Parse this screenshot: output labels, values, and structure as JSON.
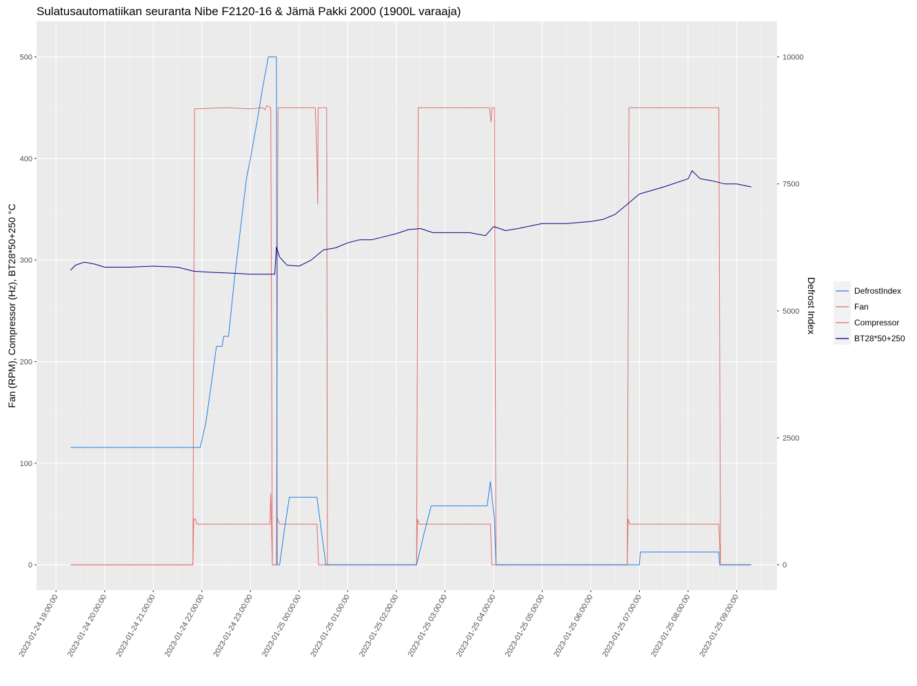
{
  "chart_data": {
    "type": "line",
    "title": "Sulatusautomatiikan seuranta Nibe F2120-16 & Jämä Pakki 2000 (1900L varaaja)",
    "ylabel": "Fan (RPM), Compressor (Hz), BT28*50+250 °C",
    "y2label": "Defrost Index",
    "ylim": [
      -25,
      535
    ],
    "y2lim": [
      -500,
      10700
    ],
    "yticks": [
      0,
      100,
      200,
      300,
      400,
      500
    ],
    "y2ticks": [
      0,
      2500,
      5000,
      7500,
      10000
    ],
    "y2tick_labels": [
      "0",
      "2500",
      "5000",
      "7500",
      "10000"
    ],
    "xlim": [
      18.6,
      9.83
    ],
    "xticks": [
      "2023-01-24 19:00:00",
      "2023-01-24 20:00:00",
      "2023-01-24 21:00:00",
      "2023-01-24 22:00:00",
      "2023-01-24 23:00:00",
      "2023-01-25 00:00:00",
      "2023-01-25 01:00:00",
      "2023-01-25 02:00:00",
      "2023-01-25 03:00:00",
      "2023-01-25 04:00:00",
      "2023-01-25 05:00:00",
      "2023-01-25 06:00:00",
      "2023-01-25 07:00:00",
      "2023-01-25 08:00:00",
      "2023-01-25 09:00:00"
    ],
    "grid": true,
    "legend_position": "right",
    "series": [
      {
        "name": "DefrostIndex",
        "color": "#1f7fe6",
        "axis": "right",
        "points": [
          [
            "2023-01-24 19:18:00",
            2310
          ],
          [
            "2023-01-24 21:58:00",
            2310
          ],
          [
            "2023-01-24 22:05:00",
            2800
          ],
          [
            "2023-01-24 22:12:00",
            3600
          ],
          [
            "2023-01-24 22:18:00",
            4300
          ],
          [
            "2023-01-24 22:25:00",
            4300
          ],
          [
            "2023-01-24 22:27:00",
            4500
          ],
          [
            "2023-01-24 22:33:00",
            4500
          ],
          [
            "2023-01-24 22:40:00",
            5600
          ],
          [
            "2023-01-24 22:55:00",
            7600
          ],
          [
            "2023-01-24 23:00:00",
            8000
          ],
          [
            "2023-01-24 23:10:00",
            8900
          ],
          [
            "2023-01-24 23:14:00",
            9300
          ],
          [
            "2023-01-24 23:22:00",
            10000
          ],
          [
            "2023-01-24 23:32:00",
            10000
          ],
          [
            "2023-01-24 23:33:00",
            0
          ],
          [
            "2023-01-24 23:36:00",
            0
          ],
          [
            "2023-01-24 23:42:00",
            700
          ],
          [
            "2023-01-24 23:48:00",
            1330
          ],
          [
            "2023-01-25 00:22:00",
            1330
          ],
          [
            "2023-01-25 00:33:00",
            0
          ],
          [
            "2023-01-25 02:25:00",
            0
          ],
          [
            "2023-01-25 02:34:00",
            600
          ],
          [
            "2023-01-25 02:43:00",
            1160
          ],
          [
            "2023-01-25 03:52:00",
            1160
          ],
          [
            "2023-01-25 03:56:00",
            1640
          ],
          [
            "2023-01-25 04:01:00",
            900
          ],
          [
            "2023-01-25 04:03:00",
            0
          ],
          [
            "2023-01-25 06:45:00",
            0
          ],
          [
            "2023-01-25 07:00:00",
            0
          ],
          [
            "2023-01-25 07:01:00",
            250
          ],
          [
            "2023-01-25 08:38:00",
            250
          ],
          [
            "2023-01-25 08:39:00",
            0
          ],
          [
            "2023-01-25 09:18:00",
            0
          ]
        ]
      },
      {
        "name": "Fan",
        "color": "#e06c6c",
        "axis": "left",
        "points": [
          [
            "2023-01-24 19:18:00",
            0
          ],
          [
            "2023-01-24 21:49:00",
            0
          ],
          [
            "2023-01-24 21:51:00",
            449
          ],
          [
            "2023-01-24 22:30:00",
            450
          ],
          [
            "2023-01-24 23:00:00",
            449
          ],
          [
            "2023-01-24 23:15:00",
            450
          ],
          [
            "2023-01-24 23:18:00",
            448
          ],
          [
            "2023-01-24 23:20:00",
            452
          ],
          [
            "2023-01-24 23:25:00",
            450
          ],
          [
            "2023-01-24 23:27:00",
            0
          ],
          [
            "2023-01-24 23:32:00",
            0
          ],
          [
            "2023-01-24 23:34:00",
            450
          ],
          [
            "2023-01-25 00:20:00",
            450
          ],
          [
            "2023-01-25 00:22:00",
            400
          ],
          [
            "2023-01-25 00:23:00",
            355
          ],
          [
            "2023-01-25 00:23:30",
            450
          ],
          [
            "2023-01-25 00:34:00",
            450
          ],
          [
            "2023-01-25 00:35:00",
            0
          ],
          [
            "2023-01-25 02:25:00",
            0
          ],
          [
            "2023-01-25 02:27:00",
            450
          ],
          [
            "2023-01-25 03:55:00",
            450
          ],
          [
            "2023-01-25 03:57:00",
            436
          ],
          [
            "2023-01-25 03:58:00",
            450
          ],
          [
            "2023-01-25 04:01:00",
            450
          ],
          [
            "2023-01-25 04:03:00",
            0
          ],
          [
            "2023-01-25 06:45:00",
            0
          ],
          [
            "2023-01-25 06:47:00",
            450
          ],
          [
            "2023-01-25 08:38:00",
            450
          ],
          [
            "2023-01-25 08:40:00",
            0
          ],
          [
            "2023-01-25 09:18:00",
            0
          ]
        ]
      },
      {
        "name": "Compressor",
        "color": "#e06c6c",
        "axis": "left",
        "points": [
          [
            "2023-01-24 19:18:00",
            0
          ],
          [
            "2023-01-24 21:49:00",
            0
          ],
          [
            "2023-01-24 21:50:00",
            45
          ],
          [
            "2023-01-24 21:52:00",
            45
          ],
          [
            "2023-01-24 21:54:00",
            40
          ],
          [
            "2023-01-24 23:24:00",
            40
          ],
          [
            "2023-01-24 23:25:00",
            70
          ],
          [
            "2023-01-24 23:27:00",
            0
          ],
          [
            "2023-01-24 23:32:00",
            0
          ],
          [
            "2023-01-24 23:33:00",
            46
          ],
          [
            "2023-01-24 23:36:00",
            40
          ],
          [
            "2023-01-25 00:22:00",
            40
          ],
          [
            "2023-01-25 00:24:00",
            0
          ],
          [
            "2023-01-25 02:25:00",
            0
          ],
          [
            "2023-01-25 02:26:00",
            45
          ],
          [
            "2023-01-25 02:28:00",
            40
          ],
          [
            "2023-01-25 03:56:00",
            40
          ],
          [
            "2023-01-25 03:58:00",
            0
          ],
          [
            "2023-01-25 06:45:00",
            0
          ],
          [
            "2023-01-25 06:46:00",
            45
          ],
          [
            "2023-01-25 06:48:00",
            40
          ],
          [
            "2023-01-25 08:38:00",
            40
          ],
          [
            "2023-01-25 08:40:00",
            0
          ],
          [
            "2023-01-25 09:18:00",
            0
          ]
        ]
      },
      {
        "name": "BT28*50+250",
        "color": "#000080",
        "axis": "left",
        "points": [
          [
            "2023-01-24 19:18:00",
            290
          ],
          [
            "2023-01-24 19:24:00",
            295
          ],
          [
            "2023-01-24 19:35:00",
            298
          ],
          [
            "2023-01-24 19:48:00",
            296
          ],
          [
            "2023-01-24 20:00:00",
            293
          ],
          [
            "2023-01-24 20:30:00",
            293
          ],
          [
            "2023-01-24 21:00:00",
            294
          ],
          [
            "2023-01-24 21:30:00",
            293
          ],
          [
            "2023-01-24 21:50:00",
            289
          ],
          [
            "2023-01-24 22:10:00",
            288
          ],
          [
            "2023-01-24 22:40:00",
            287
          ],
          [
            "2023-01-24 23:00:00",
            286
          ],
          [
            "2023-01-24 23:30:00",
            286
          ],
          [
            "2023-01-24 23:32:00",
            313
          ],
          [
            "2023-01-24 23:36:00",
            303
          ],
          [
            "2023-01-24 23:45:00",
            295
          ],
          [
            "2023-01-25 00:00:00",
            294
          ],
          [
            "2023-01-25 00:15:00",
            300
          ],
          [
            "2023-01-25 00:30:00",
            310
          ],
          [
            "2023-01-25 00:45:00",
            312
          ],
          [
            "2023-01-25 01:00:00",
            317
          ],
          [
            "2023-01-25 01:15:00",
            320
          ],
          [
            "2023-01-25 01:30:00",
            320
          ],
          [
            "2023-01-25 01:45:00",
            323
          ],
          [
            "2023-01-25 02:00:00",
            326
          ],
          [
            "2023-01-25 02:15:00",
            330
          ],
          [
            "2023-01-25 02:30:00",
            331
          ],
          [
            "2023-01-25 02:45:00",
            327
          ],
          [
            "2023-01-25 03:00:00",
            327
          ],
          [
            "2023-01-25 03:30:00",
            327
          ],
          [
            "2023-01-25 03:50:00",
            324
          ],
          [
            "2023-01-25 04:00:00",
            333
          ],
          [
            "2023-01-25 04:15:00",
            329
          ],
          [
            "2023-01-25 04:30:00",
            331
          ],
          [
            "2023-01-25 05:00:00",
            336
          ],
          [
            "2023-01-25 05:30:00",
            336
          ],
          [
            "2023-01-25 06:00:00",
            338
          ],
          [
            "2023-01-25 06:15:00",
            340
          ],
          [
            "2023-01-25 06:30:00",
            345
          ],
          [
            "2023-01-25 06:45:00",
            355
          ],
          [
            "2023-01-25 07:00:00",
            365
          ],
          [
            "2023-01-25 07:30:00",
            372
          ],
          [
            "2023-01-25 08:00:00",
            380
          ],
          [
            "2023-01-25 08:05:00",
            388
          ],
          [
            "2023-01-25 08:15:00",
            380
          ],
          [
            "2023-01-25 08:30:00",
            378
          ],
          [
            "2023-01-25 08:45:00",
            375
          ],
          [
            "2023-01-25 09:00:00",
            375
          ],
          [
            "2023-01-25 09:18:00",
            372
          ]
        ]
      }
    ]
  }
}
